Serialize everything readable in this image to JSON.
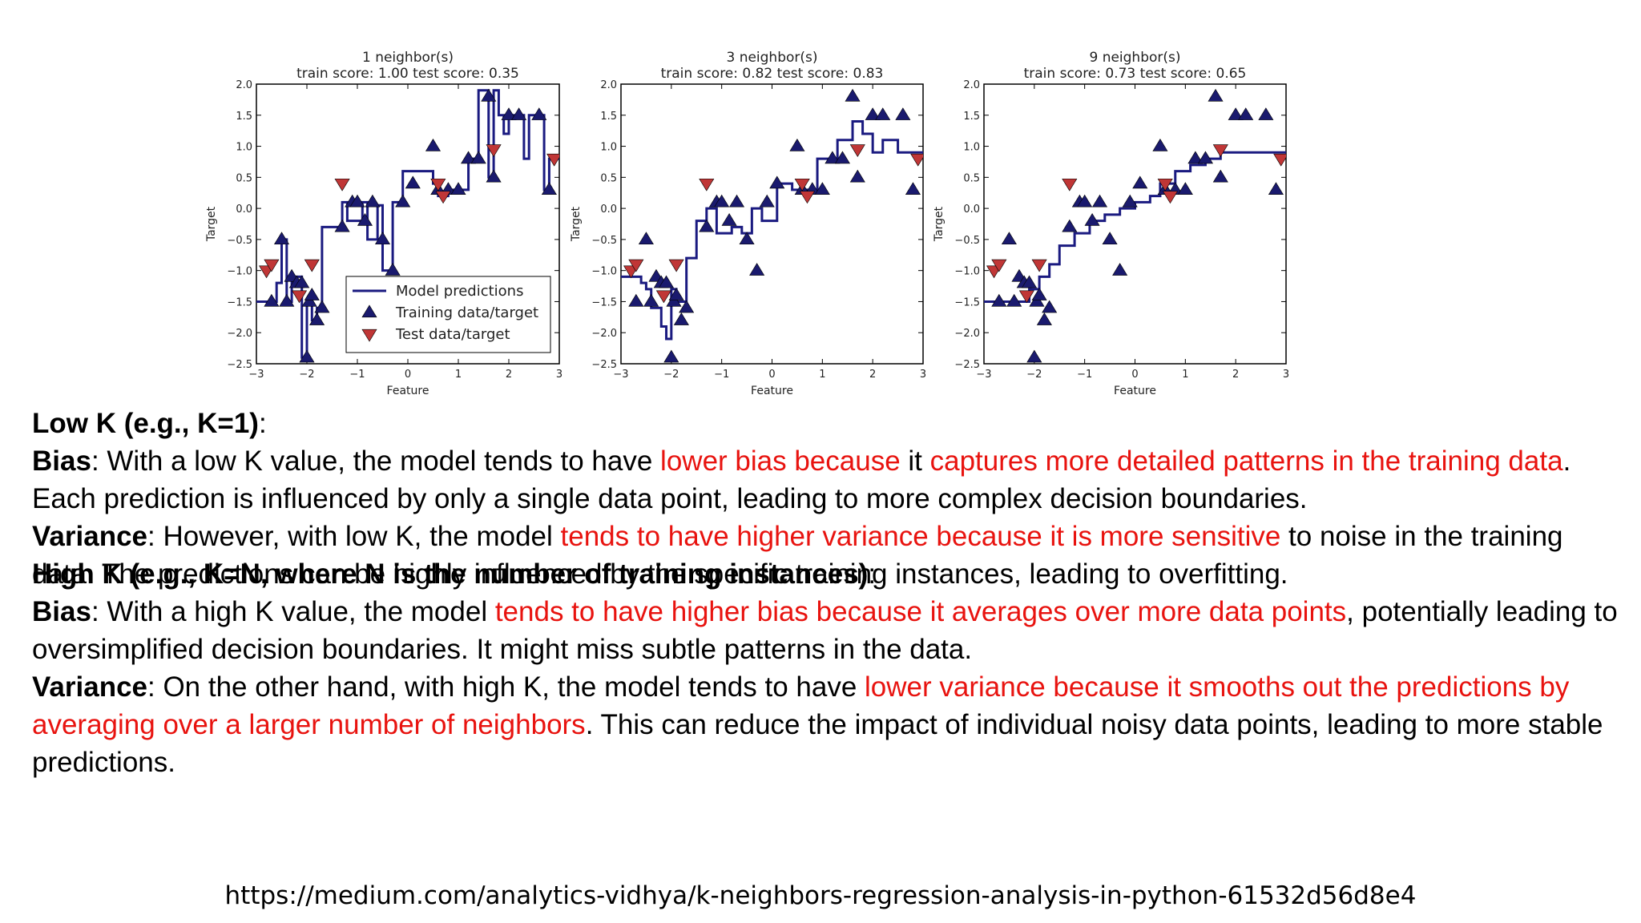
{
  "colors": {
    "line": "#1a1a80",
    "train": "#1a1a6e",
    "test": "#c03636",
    "highlight": "#e8130f"
  },
  "chart_data": [
    {
      "type": "scatter",
      "title": "1 neighbor(s)",
      "subtitle": "train score: 1.00 test score: 0.35",
      "xlabel": "Feature",
      "ylabel": "Target",
      "xlim": [
        -3,
        3
      ],
      "ylim": [
        -2.5,
        2.0
      ],
      "xticks": [
        "−3",
        "−2",
        "−1",
        "0",
        "1",
        "2",
        "3"
      ],
      "yticks": [
        "2.0",
        "1.5",
        "1.0",
        "0.5",
        "0.0",
        "−0.5",
        "−1.0",
        "−1.5",
        "−2.0",
        "−2.5"
      ],
      "legend": {
        "placement": "lower-right",
        "entries": [
          "Model predictions",
          "Training data/target",
          "Test data/target"
        ]
      },
      "series": [
        {
          "name": "Model predictions",
          "kind": "line",
          "x": [
            -3.0,
            -2.6,
            -2.6,
            -2.5,
            -2.5,
            -2.4,
            -2.4,
            -2.3,
            -2.3,
            -2.1,
            -2.1,
            -2.0,
            -2.0,
            -1.9,
            -1.9,
            -1.8,
            -1.8,
            -1.7,
            -1.7,
            -1.3,
            -1.3,
            -1.2,
            -1.2,
            -0.9,
            -0.9,
            -0.8,
            -0.8,
            -0.6,
            -0.6,
            -0.5,
            -0.5,
            -0.3,
            -0.3,
            -0.1,
            -0.1,
            0.5,
            0.5,
            0.6,
            0.6,
            0.8,
            0.8,
            1.2,
            1.2,
            1.4,
            1.4,
            1.6,
            1.6,
            1.7,
            1.7,
            1.8,
            1.8,
            1.9,
            1.9,
            2.0,
            2.0,
            2.3,
            2.3,
            2.4,
            2.4,
            2.7,
            2.7,
            2.8,
            2.8,
            3.0
          ],
          "y": [
            -1.5,
            -1.5,
            -1.2,
            -1.2,
            -0.5,
            -0.5,
            -1.5,
            -1.5,
            -1.1,
            -1.1,
            -2.4,
            -2.4,
            -1.5,
            -1.5,
            -1.8,
            -1.8,
            -1.6,
            -1.6,
            -0.3,
            -0.3,
            0.1,
            0.1,
            -0.2,
            -0.2,
            0.1,
            0.1,
            -0.5,
            -0.5,
            0.05,
            0.05,
            -1.0,
            -1.0,
            0.1,
            0.1,
            0.6,
            0.6,
            0.4,
            0.4,
            0.2,
            0.2,
            0.3,
            0.3,
            0.8,
            0.8,
            1.9,
            1.9,
            0.5,
            0.5,
            1.9,
            1.9,
            1.5,
            1.5,
            1.2,
            1.2,
            1.5,
            1.5,
            0.8,
            0.8,
            1.5,
            1.5,
            0.3,
            0.3,
            0.8,
            0.8
          ]
        },
        {
          "name": "Training data/target",
          "kind": "points",
          "x": [
            -2.7,
            -2.5,
            -2.4,
            -2.3,
            -2.2,
            -2.1,
            -2.0,
            -1.95,
            -1.9,
            -1.8,
            -1.7,
            -1.3,
            -1.1,
            -1.0,
            -0.85,
            -0.7,
            -0.5,
            -0.3,
            -0.1,
            0.1,
            0.5,
            0.6,
            0.8,
            1.0,
            1.2,
            1.4,
            1.6,
            1.7,
            2.0,
            2.2,
            2.6,
            2.8
          ],
          "y": [
            -1.5,
            -0.5,
            -1.5,
            -1.1,
            -1.2,
            -1.2,
            -2.4,
            -1.5,
            -1.4,
            -1.8,
            -1.6,
            -0.3,
            0.1,
            0.1,
            -0.2,
            0.1,
            -0.5,
            -1.0,
            0.1,
            0.4,
            1.0,
            0.3,
            0.3,
            0.3,
            0.8,
            0.8,
            1.8,
            0.5,
            1.5,
            1.5,
            1.5,
            0.3
          ]
        },
        {
          "name": "Test data/target",
          "kind": "points",
          "x": [
            -2.8,
            -2.7,
            -2.15,
            -1.9,
            -1.3,
            0.6,
            0.7,
            1.7,
            2.9
          ],
          "y": [
            -1.0,
            -0.9,
            -1.4,
            -0.9,
            0.4,
            0.4,
            0.2,
            0.95,
            0.8
          ]
        }
      ]
    },
    {
      "type": "scatter",
      "title": "3 neighbor(s)",
      "subtitle": "train score: 0.82 test score: 0.83",
      "xlabel": "Feature",
      "ylabel": "Target",
      "xlim": [
        -3,
        3
      ],
      "ylim": [
        -2.5,
        2.0
      ],
      "xticks": [
        "−3",
        "−2",
        "−1",
        "0",
        "1",
        "2",
        "3"
      ],
      "yticks": [
        "2.0",
        "1.5",
        "1.0",
        "0.5",
        "0.0",
        "−0.5",
        "−1.0",
        "−1.5",
        "−2.0",
        "−2.5"
      ],
      "series": [
        {
          "name": "Model predictions",
          "kind": "line",
          "x": [
            -3.0,
            -2.6,
            -2.6,
            -2.5,
            -2.5,
            -2.4,
            -2.4,
            -2.2,
            -2.2,
            -2.1,
            -2.1,
            -2.0,
            -2.0,
            -1.9,
            -1.9,
            -1.7,
            -1.7,
            -1.5,
            -1.5,
            -1.3,
            -1.3,
            -1.1,
            -1.1,
            -0.8,
            -0.8,
            -0.6,
            -0.6,
            -0.4,
            -0.4,
            -0.2,
            -0.2,
            0.1,
            0.1,
            0.4,
            0.4,
            0.7,
            0.7,
            0.9,
            0.9,
            1.3,
            1.3,
            1.6,
            1.6,
            1.8,
            1.8,
            2.0,
            2.0,
            2.2,
            2.2,
            2.5,
            2.5,
            3.0
          ],
          "y": [
            -1.1,
            -1.1,
            -1.2,
            -1.2,
            -1.3,
            -1.3,
            -1.6,
            -1.6,
            -1.9,
            -1.9,
            -2.1,
            -2.1,
            -1.3,
            -1.3,
            -1.5,
            -1.5,
            -0.8,
            -0.8,
            -0.2,
            -0.2,
            0.0,
            0.0,
            -0.4,
            -0.4,
            -0.3,
            -0.3,
            -0.4,
            -0.4,
            0.0,
            0.0,
            -0.2,
            -0.2,
            0.4,
            0.4,
            0.3,
            0.3,
            0.25,
            0.25,
            0.8,
            0.8,
            1.1,
            1.1,
            1.4,
            1.4,
            1.2,
            1.2,
            0.9,
            0.9,
            1.1,
            1.1,
            0.9,
            0.9
          ]
        },
        {
          "name": "Training data/target",
          "kind": "points",
          "x": [
            -2.7,
            -2.5,
            -2.4,
            -2.3,
            -2.2,
            -2.1,
            -2.0,
            -1.95,
            -1.9,
            -1.8,
            -1.7,
            -1.3,
            -1.1,
            -1.0,
            -0.85,
            -0.7,
            -0.5,
            -0.3,
            -0.1,
            0.1,
            0.5,
            0.6,
            0.8,
            1.0,
            1.2,
            1.4,
            1.6,
            1.7,
            2.0,
            2.2,
            2.6,
            2.8
          ],
          "y": [
            -1.5,
            -0.5,
            -1.5,
            -1.1,
            -1.2,
            -1.2,
            -2.4,
            -1.5,
            -1.4,
            -1.8,
            -1.6,
            -0.3,
            0.1,
            0.1,
            -0.2,
            0.1,
            -0.5,
            -1.0,
            0.1,
            0.4,
            1.0,
            0.3,
            0.3,
            0.3,
            0.8,
            0.8,
            1.8,
            0.5,
            1.5,
            1.5,
            1.5,
            0.3
          ]
        },
        {
          "name": "Test data/target",
          "kind": "points",
          "x": [
            -2.8,
            -2.7,
            -2.15,
            -1.9,
            -1.3,
            0.6,
            0.7,
            1.7,
            2.9
          ],
          "y": [
            -1.0,
            -0.9,
            -1.4,
            -0.9,
            0.4,
            0.4,
            0.2,
            0.95,
            0.8
          ]
        }
      ]
    },
    {
      "type": "scatter",
      "title": "9 neighbor(s)",
      "subtitle": "train score: 0.73 test score: 0.65",
      "xlabel": "Feature",
      "ylabel": "Target",
      "xlim": [
        -3,
        3
      ],
      "ylim": [
        -2.5,
        2.0
      ],
      "xticks": [
        "−3",
        "−2",
        "−1",
        "0",
        "1",
        "2",
        "3"
      ],
      "yticks": [
        "2.0",
        "1.5",
        "1.0",
        "0.5",
        "0.0",
        "−0.5",
        "−1.0",
        "−1.5",
        "−2.0",
        "−2.5"
      ],
      "series": [
        {
          "name": "Model predictions",
          "kind": "line",
          "x": [
            -3.0,
            -2.1,
            -2.1,
            -1.9,
            -1.9,
            -1.7,
            -1.7,
            -1.5,
            -1.5,
            -1.2,
            -1.2,
            -0.9,
            -0.9,
            -0.6,
            -0.6,
            -0.3,
            -0.3,
            0.0,
            0.0,
            0.3,
            0.3,
            0.5,
            0.5,
            0.8,
            0.8,
            1.1,
            1.1,
            1.4,
            1.4,
            1.7,
            1.7,
            3.0
          ],
          "y": [
            -1.5,
            -1.5,
            -1.3,
            -1.3,
            -1.1,
            -1.1,
            -0.9,
            -0.9,
            -0.6,
            -0.6,
            -0.4,
            -0.4,
            -0.2,
            -0.2,
            -0.1,
            -0.1,
            0.0,
            0.0,
            0.1,
            0.1,
            0.2,
            0.2,
            0.4,
            0.4,
            0.6,
            0.6,
            0.7,
            0.7,
            0.8,
            0.8,
            0.9,
            0.9
          ]
        },
        {
          "name": "Training data/target",
          "kind": "points",
          "x": [
            -2.7,
            -2.5,
            -2.4,
            -2.3,
            -2.2,
            -2.1,
            -2.0,
            -1.95,
            -1.9,
            -1.8,
            -1.7,
            -1.3,
            -1.1,
            -1.0,
            -0.85,
            -0.7,
            -0.5,
            -0.3,
            -0.1,
            0.1,
            0.5,
            0.6,
            0.8,
            1.0,
            1.2,
            1.4,
            1.6,
            1.7,
            2.0,
            2.2,
            2.6,
            2.8
          ],
          "y": [
            -1.5,
            -0.5,
            -1.5,
            -1.1,
            -1.2,
            -1.2,
            -2.4,
            -1.5,
            -1.4,
            -1.8,
            -1.6,
            -0.3,
            0.1,
            0.1,
            -0.2,
            0.1,
            -0.5,
            -1.0,
            0.1,
            0.4,
            1.0,
            0.3,
            0.3,
            0.3,
            0.8,
            0.8,
            1.8,
            0.5,
            1.5,
            1.5,
            1.5,
            0.3
          ]
        },
        {
          "name": "Test data/target",
          "kind": "points",
          "x": [
            -2.8,
            -2.7,
            -2.15,
            -1.9,
            -1.3,
            0.6,
            0.7,
            1.7,
            2.9
          ],
          "y": [
            -1.0,
            -0.9,
            -1.4,
            -0.9,
            0.4,
            0.4,
            0.2,
            0.95,
            0.8
          ]
        }
      ]
    }
  ],
  "text": {
    "low_heading": "Low K (e.g., K=1)",
    "colon": ":",
    "bias_label": "Bias",
    "variance_label": "Variance",
    "low_bias_1": ": With a low K value, the model tends to have ",
    "low_bias_red_1": "lower bias because",
    "low_bias_2": " it ",
    "low_bias_red_2": "captures more detailed patterns in the training data",
    "low_bias_3": ". Each prediction is influenced by only a single data point, leading to more complex decision boundaries.",
    "low_var_1": ": However, with low K, the model ",
    "low_var_red": "tends to have higher variance because it is more sensitive",
    "low_var_2": " to noise in the training data. The predictions can be highly influenced by the specific training instances, leading to overfitting.",
    "high_heading": "High K (e.g., K=N, where N is the number of training instances)",
    "high_bias_1": ": With a high K value, the model ",
    "high_bias_red": "tends to have higher bias because it averages over more data points",
    "high_bias_2": ", potentially leading to oversimplified decision boundaries. It might miss subtle patterns in the data.",
    "high_var_1": ": On the other hand, with high K, the model tends to have ",
    "high_var_red": "lower variance because it smooths out the predictions by averaging over a larger number of neighbors",
    "high_var_2": ". This can reduce the impact of individual noisy data points, leading to more stable predictions.",
    "url": "https://medium.com/analytics-vidhya/k-neighbors-regression-analysis-in-python-61532d56d8e4"
  }
}
